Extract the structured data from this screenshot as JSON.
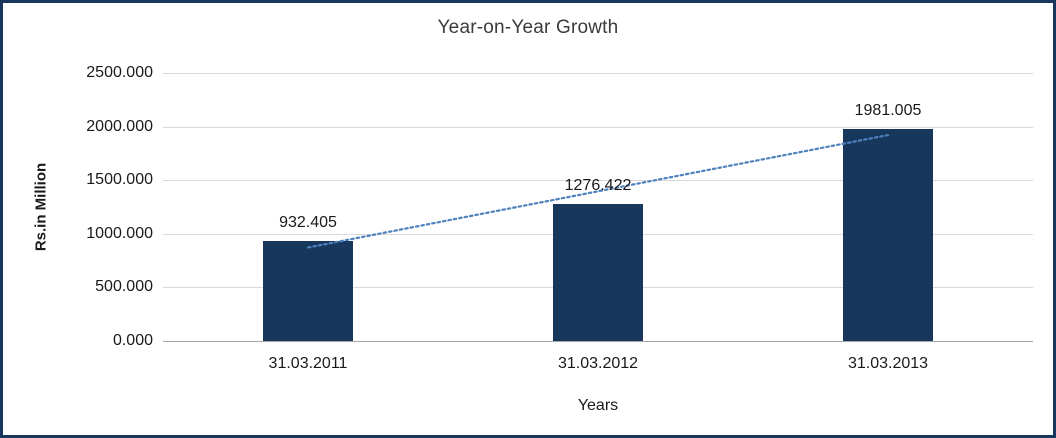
{
  "chart_data": {
    "type": "bar",
    "title": "Year-on-Year Growth",
    "xlabel": "Years",
    "ylabel": "Rs.in Million",
    "categories": [
      "31.03.2011",
      "31.03.2012",
      "31.03.2013"
    ],
    "values": [
      932.405,
      1276.422,
      1981.005
    ],
    "data_labels": [
      "932.405",
      "1276.422",
      "1981.005"
    ],
    "y_ticks": [
      "2500.000",
      "2000.000",
      "1500.000",
      "1000.000",
      "500.000",
      "0.000"
    ],
    "ylim": [
      0,
      2500
    ],
    "grid": true,
    "legend": "none",
    "bar_color": "#17375d",
    "frame_color": "#17375d",
    "gridline_color": "#d9d9d9",
    "trendline": {
      "type": "linear",
      "style": "dotted",
      "color": "#4f81bd",
      "start_value": 872,
      "end_value": 1921
    }
  }
}
